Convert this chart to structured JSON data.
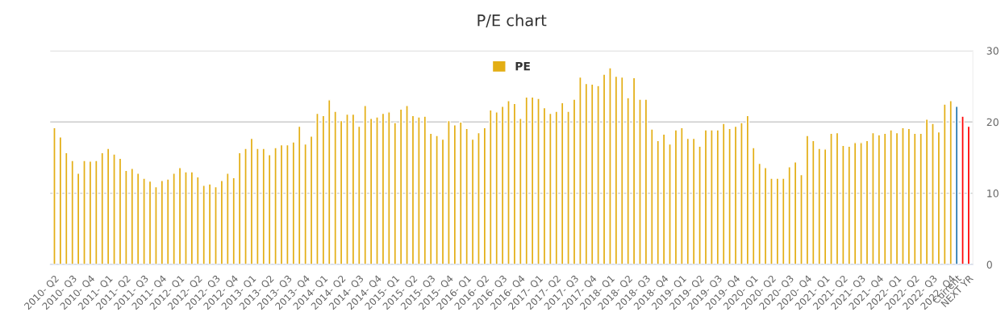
{
  "chart_data": {
    "type": "bar",
    "title": "P/E chart",
    "categories": [
      "2010- Q2",
      null,
      null,
      "2010- Q3",
      null,
      null,
      "2010- Q4",
      null,
      null,
      "2011- Q1",
      null,
      null,
      "2011- Q2",
      null,
      null,
      "2011- Q3",
      null,
      null,
      "2011- Q4",
      null,
      null,
      "2012- Q1",
      null,
      null,
      "2012- Q2",
      null,
      null,
      "2012- Q3",
      null,
      null,
      "2012- Q4",
      null,
      null,
      "2013- Q1",
      null,
      null,
      "2013- Q2",
      null,
      null,
      "2013- Q3",
      null,
      null,
      "2013- Q4",
      null,
      null,
      "2014- Q1",
      null,
      null,
      "2014- Q2",
      null,
      null,
      "2014- Q3",
      null,
      null,
      "2014- Q4",
      null,
      null,
      "2015- Q1",
      null,
      null,
      "2015- Q2",
      null,
      null,
      "2015- Q3",
      null,
      null,
      "2015- Q4",
      null,
      null,
      "2016- Q1",
      null,
      null,
      "2016- Q2",
      null,
      null,
      "2016- Q3",
      null,
      null,
      "2016- Q4",
      null,
      null,
      "2017- Q1",
      null,
      null,
      "2017- Q2",
      null,
      null,
      "2017- Q3",
      null,
      null,
      "2017- Q4",
      null,
      null,
      "2018- Q1",
      null,
      null,
      "2018- Q2",
      null,
      null,
      "2018- Q3",
      null,
      null,
      "2018- Q4",
      null,
      null,
      "2019- Q1",
      null,
      null,
      "2019- Q2",
      null,
      null,
      "2019- Q3",
      null,
      null,
      "2019- Q4",
      null,
      null,
      "2020- Q1",
      null,
      null,
      "2020- Q2",
      null,
      null,
      "2020- Q3",
      null,
      null,
      "2020- Q4",
      null,
      null,
      "2021- Q1",
      null,
      null,
      "2021- Q2",
      null,
      null,
      "2021- Q3",
      null,
      null,
      "2021- Q4",
      null,
      null,
      "2022- Q1",
      null,
      null,
      "2022- Q2",
      null,
      null,
      "2022- Q3",
      null,
      null,
      "2022- Q4",
      "Current",
      null,
      "NEXT YR"
    ],
    "series": [
      {
        "name": "PE",
        "color": "#e3ae14",
        "colors": [
          "#e3ae14",
          "#e3ae14",
          "#e3ae14",
          "#e3ae14",
          "#e3ae14",
          "#e3ae14",
          "#e3ae14",
          "#e3ae14",
          "#e3ae14",
          "#e3ae14",
          "#e3ae14",
          "#e3ae14",
          "#e3ae14",
          "#e3ae14",
          "#e3ae14",
          "#e3ae14",
          "#e3ae14",
          "#e3ae14",
          "#e3ae14",
          "#e3ae14",
          "#e3ae14",
          "#e3ae14",
          "#e3ae14",
          "#e3ae14",
          "#e3ae14",
          "#e3ae14",
          "#e3ae14",
          "#e3ae14",
          "#e3ae14",
          "#e3ae14",
          "#e3ae14",
          "#e3ae14",
          "#e3ae14",
          "#e3ae14",
          "#e3ae14",
          "#e3ae14",
          "#e3ae14",
          "#e3ae14",
          "#e3ae14",
          "#e3ae14",
          "#e3ae14",
          "#e3ae14",
          "#e3ae14",
          "#e3ae14",
          "#e3ae14",
          "#e3ae14",
          "#e3ae14",
          "#e3ae14",
          "#e3ae14",
          "#e3ae14",
          "#e3ae14",
          "#e3ae14",
          "#e3ae14",
          "#e3ae14",
          "#e3ae14",
          "#e3ae14",
          "#e3ae14",
          "#e3ae14",
          "#e3ae14",
          "#e3ae14",
          "#e3ae14",
          "#e3ae14",
          "#e3ae14",
          "#e3ae14",
          "#e3ae14",
          "#e3ae14",
          "#e3ae14",
          "#e3ae14",
          "#e3ae14",
          "#e3ae14",
          "#e3ae14",
          "#e3ae14",
          "#e3ae14",
          "#e3ae14",
          "#e3ae14",
          "#e3ae14",
          "#e3ae14",
          "#e3ae14",
          "#e3ae14",
          "#e3ae14",
          "#e3ae14",
          "#e3ae14",
          "#e3ae14",
          "#e3ae14",
          "#e3ae14",
          "#e3ae14",
          "#e3ae14",
          "#e3ae14",
          "#e3ae14",
          "#e3ae14",
          "#e3ae14",
          "#e3ae14",
          "#e3ae14",
          "#e3ae14",
          "#e3ae14",
          "#e3ae14",
          "#e3ae14",
          "#e3ae14",
          "#e3ae14",
          "#e3ae14",
          "#e3ae14",
          "#e3ae14",
          "#e3ae14",
          "#e3ae14",
          "#e3ae14",
          "#e3ae14",
          "#e3ae14",
          "#e3ae14",
          "#e3ae14",
          "#e3ae14",
          "#e3ae14",
          "#e3ae14",
          "#e3ae14",
          "#e3ae14",
          "#e3ae14",
          "#e3ae14",
          "#e3ae14",
          "#e3ae14",
          "#e3ae14",
          "#e3ae14",
          "#e3ae14",
          "#e3ae14",
          "#e3ae14",
          "#e3ae14",
          "#e3ae14",
          "#e3ae14",
          "#e3ae14",
          "#e3ae14",
          "#e3ae14",
          "#e3ae14",
          "#e3ae14",
          "#e3ae14",
          "#e3ae14",
          "#e3ae14",
          "#e3ae14",
          "#e3ae14",
          "#e3ae14",
          "#e3ae14",
          "#e3ae14",
          "#e3ae14",
          "#e3ae14",
          "#e3ae14",
          "#e3ae14",
          "#e3ae14",
          "#e3ae14",
          "#e3ae14",
          "#e3ae14",
          "#e3ae14",
          "#e3ae14",
          "#e3ae14",
          "#e3ae14",
          "#2878b0",
          "#ff0000",
          "#ff0000"
        ],
        "values": [
          19.2,
          17.9,
          15.7,
          14.6,
          12.8,
          14.6,
          14.5,
          14.6,
          15.7,
          16.3,
          15.5,
          14.9,
          13.2,
          13.5,
          12.8,
          12.1,
          11.7,
          10.9,
          11.8,
          12.0,
          12.8,
          13.6,
          13.0,
          13.0,
          12.3,
          11.1,
          11.3,
          10.9,
          11.8,
          12.8,
          12.2,
          15.7,
          16.3,
          17.7,
          16.3,
          16.3,
          15.4,
          16.4,
          16.8,
          16.8,
          17.2,
          19.4,
          16.9,
          18.0,
          21.2,
          20.9,
          23.1,
          21.5,
          20.2,
          21.1,
          21.1,
          19.4,
          22.3,
          20.5,
          20.7,
          21.2,
          21.4,
          19.9,
          21.8,
          22.3,
          20.9,
          20.7,
          20.8,
          18.4,
          18.1,
          17.6,
          20.2,
          19.6,
          20.0,
          19.1,
          17.6,
          18.5,
          19.2,
          21.7,
          21.4,
          22.2,
          23.0,
          22.6,
          20.5,
          23.5,
          23.5,
          23.3,
          22.0,
          21.2,
          21.5,
          22.7,
          21.5,
          23.2,
          26.3,
          25.4,
          25.3,
          25.1,
          26.7,
          27.6,
          26.4,
          26.3,
          23.4,
          26.2,
          23.2,
          23.2,
          19.0,
          17.4,
          18.3,
          16.9,
          18.9,
          19.2,
          17.7,
          17.7,
          16.6,
          18.9,
          18.9,
          18.9,
          19.8,
          19.1,
          19.4,
          19.9,
          20.9,
          16.4,
          14.2,
          13.6,
          12.1,
          12.1,
          12.1,
          13.7,
          14.4,
          12.6,
          18.1,
          17.4,
          16.3,
          16.2,
          18.4,
          18.5,
          16.7,
          16.6,
          17.1,
          17.1,
          17.4,
          18.5,
          18.2,
          18.4,
          18.9,
          18.5,
          19.2,
          19.1,
          18.4,
          18.4,
          20.4,
          19.8,
          18.6,
          22.5,
          23.0,
          22.2,
          20.8,
          19.4
        ]
      }
    ],
    "ylim": [
      0,
      30
    ],
    "yticks": [
      0,
      10,
      20,
      30
    ],
    "grid": "y",
    "legend": "top"
  }
}
